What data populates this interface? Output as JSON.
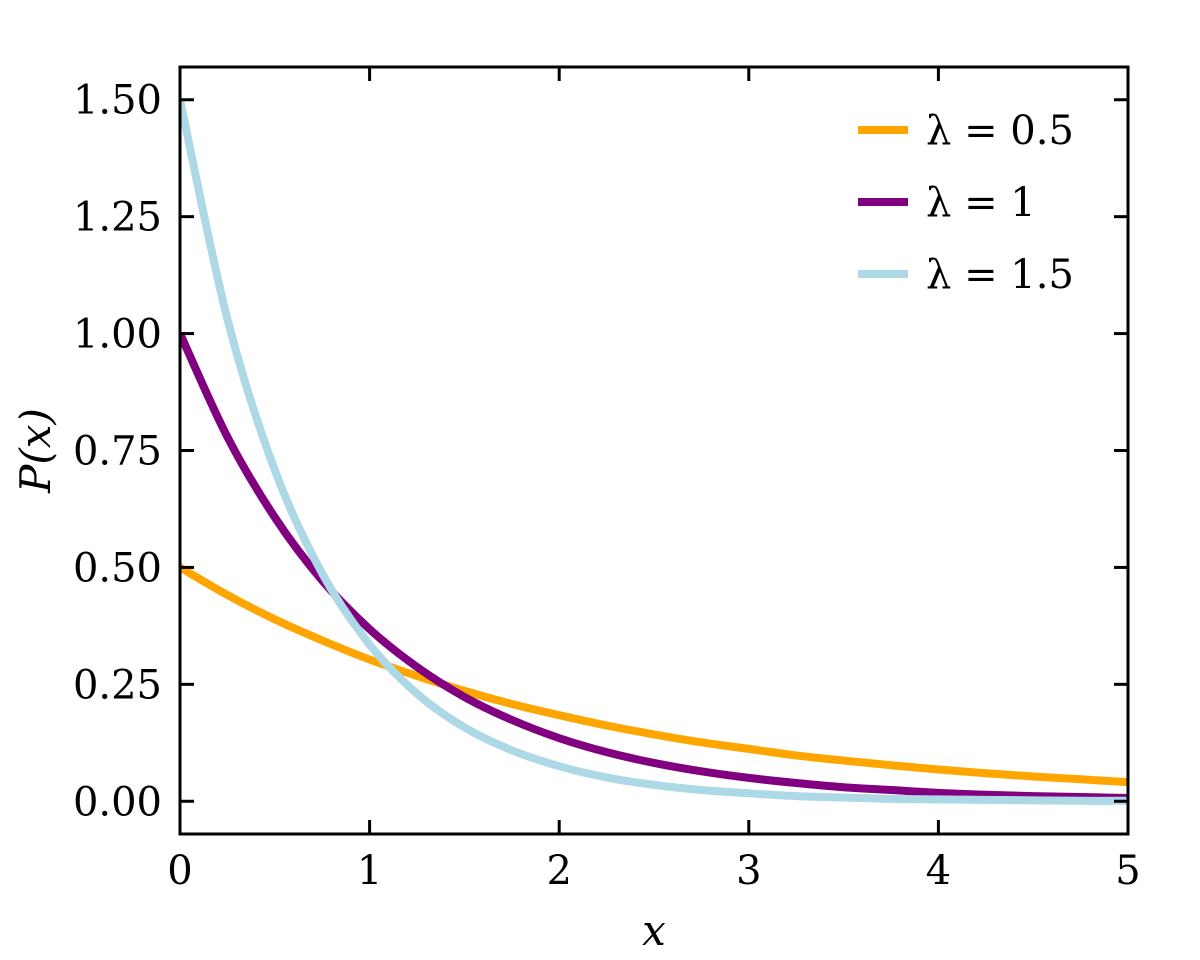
{
  "chart_data": {
    "type": "line",
    "title": "",
    "xlabel": "x",
    "ylabel": "P(x)",
    "xlim": [
      0,
      5
    ],
    "ylim": [
      -0.07,
      1.57
    ],
    "xticks": [
      0,
      1,
      2,
      3,
      4,
      5
    ],
    "xtick_labels": [
      "0",
      "1",
      "2",
      "3",
      "4",
      "5"
    ],
    "yticks": [
      0,
      0.25,
      0.5,
      0.75,
      1.0,
      1.25,
      1.5
    ],
    "ytick_labels": [
      "0.00",
      "0.25",
      "0.50",
      "0.75",
      "1.00",
      "1.25",
      "1.50"
    ],
    "grid": false,
    "legend_position": "top-right",
    "x": [
      0,
      0.25,
      0.5,
      0.75,
      1,
      1.25,
      1.5,
      1.75,
      2,
      2.25,
      2.5,
      2.75,
      3,
      3.25,
      3.5,
      3.75,
      4,
      4.25,
      4.5,
      4.75,
      5
    ],
    "series": [
      {
        "name": "λ = 0.5",
        "color": "#FFA500",
        "values": [
          0.5,
          0.441,
          0.389,
          0.344,
          0.303,
          0.268,
          0.236,
          0.208,
          0.184,
          0.162,
          0.143,
          0.126,
          0.112,
          0.098,
          0.087,
          0.077,
          0.068,
          0.06,
          0.053,
          0.047,
          0.041
        ]
      },
      {
        "name": "λ = 1",
        "color": "#800080",
        "values": [
          1.0,
          0.779,
          0.607,
          0.472,
          0.368,
          0.287,
          0.223,
          0.174,
          0.135,
          0.105,
          0.082,
          0.064,
          0.05,
          0.039,
          0.03,
          0.024,
          0.018,
          0.014,
          0.011,
          0.009,
          0.007
        ]
      },
      {
        "name": "λ = 1.5",
        "color": "#ADD8E6",
        "values": [
          1.5,
          1.031,
          0.708,
          0.487,
          0.335,
          0.23,
          0.158,
          0.109,
          0.075,
          0.051,
          0.035,
          0.024,
          0.017,
          0.011,
          0.008,
          0.005,
          0.004,
          0.003,
          0.002,
          0.001,
          0.001
        ]
      }
    ]
  }
}
